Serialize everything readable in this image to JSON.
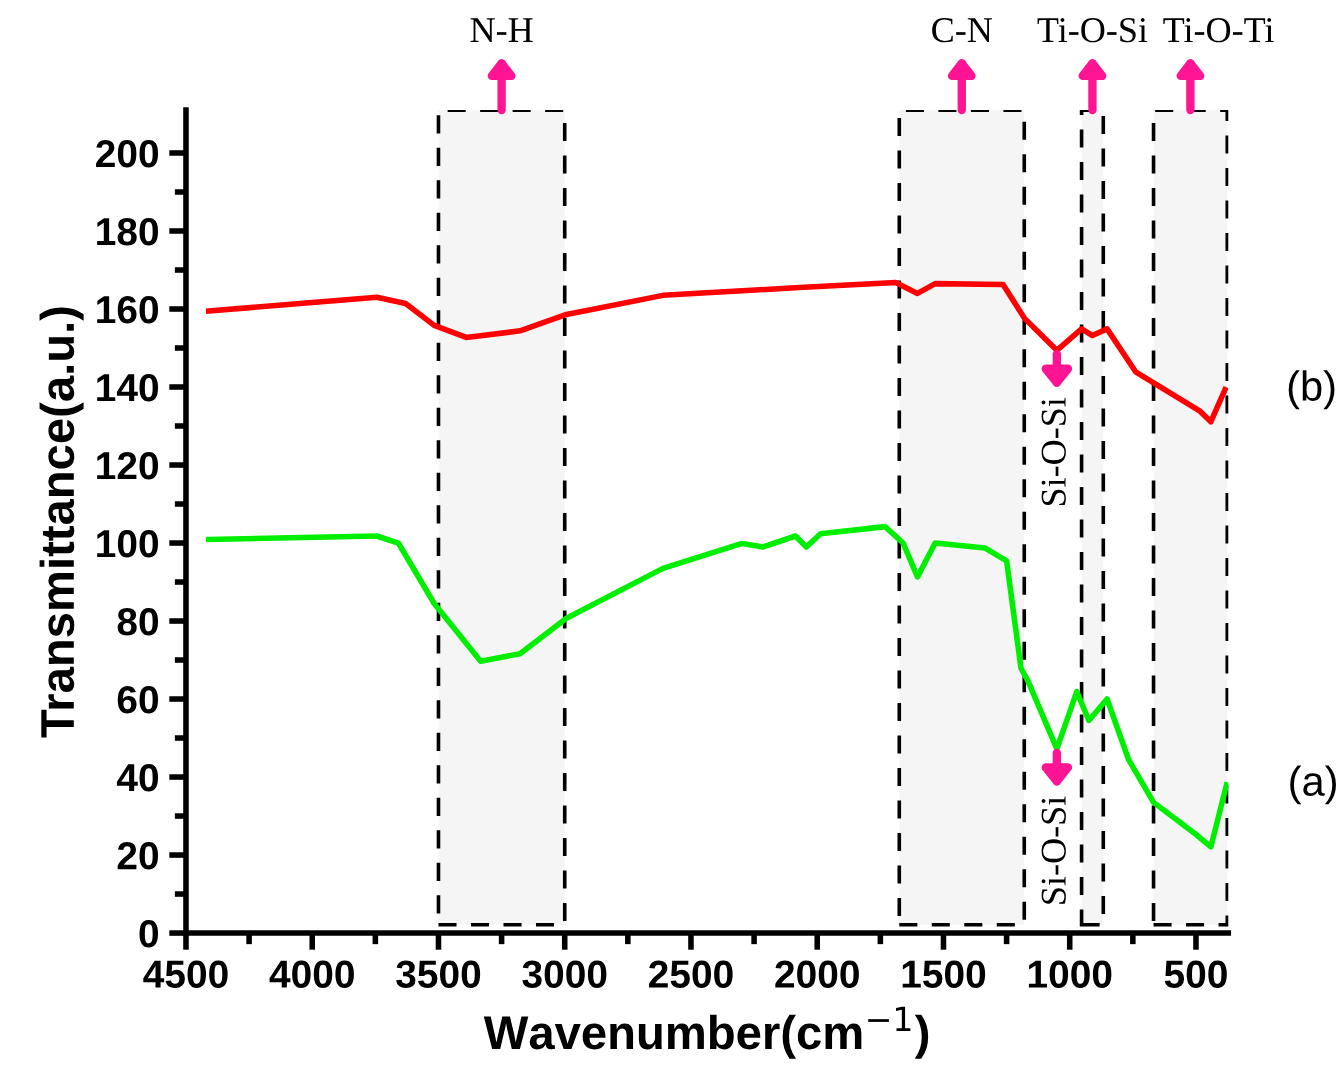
{
  "chart_data": {
    "type": "line",
    "xlabel": "Wavenumber(cm$^{−1}$)",
    "ylabel": "Transmittance(a.u.)",
    "xlim": [
      4500,
      372
    ],
    "ylim": [
      0,
      211
    ],
    "xticks": [
      4500,
      {
        "value": 4250,
        "label": null
      },
      4000,
      {
        "value": 3750,
        "label": null
      },
      3500,
      {
        "value": 3250,
        "label": null
      },
      3000,
      {
        "value": 2750,
        "label": null
      },
      2500,
      {
        "value": 2250,
        "label": null
      },
      2000,
      {
        "value": 1750,
        "label": null
      },
      1500,
      {
        "value": 1250,
        "label": null
      },
      1000,
      {
        "value": 750,
        "label": null
      },
      500
    ],
    "yticks": [
      0,
      {
        "value": 10,
        "label": null
      },
      20,
      {
        "value": 30,
        "label": null
      },
      40,
      {
        "value": 50,
        "label": null
      },
      60,
      {
        "value": 70,
        "label": null
      },
      80,
      {
        "value": 90,
        "label": null
      },
      100,
      {
        "value": 110,
        "label": null
      },
      120,
      {
        "value": 130,
        "label": null
      },
      140,
      {
        "value": 150,
        "label": null
      },
      160,
      {
        "value": 170,
        "label": null
      },
      180,
      {
        "value": 190,
        "label": null
      },
      200
    ],
    "grid": false,
    "legend": false,
    "marker": "none",
    "line_style": "solid",
    "series": [
      {
        "name": "(b)",
        "color": "#ff0000",
        "x": [
          4410,
          3744,
          3630,
          3517,
          3390,
          3177,
          2993,
          2611,
          2071,
          1689,
          1603,
          1533,
          1264,
          1179,
          1051,
          953,
          910,
          852,
          739,
          484,
          441,
          385
        ],
        "values": [
          159.5,
          163,
          161.4,
          155.8,
          152.7,
          154.4,
          158.6,
          163.5,
          165.5,
          166.8,
          164,
          166.5,
          166.3,
          157.6,
          149.4,
          154.9,
          153.2,
          154.9,
          143.9,
          133.8,
          131.1,
          139.3
        ]
      },
      {
        "name": "(a)",
        "color": "#00ee00",
        "x": [
          4410,
          3744,
          3659,
          3517,
          3333,
          3177,
          2993,
          2611,
          2298,
          2214,
          2086,
          2043,
          1987,
          1731,
          1660,
          1603,
          1533,
          1335,
          1250,
          1193,
          1165,
          1051,
          972,
          924,
          852,
          767,
          668,
          498,
          441,
          379
        ],
        "values": [
          100.9,
          101.8,
          100,
          84.5,
          69.7,
          71.6,
          80.7,
          93.5,
          99.9,
          99,
          101.8,
          99,
          102.4,
          104.2,
          100,
          91.3,
          100,
          98.7,
          95.4,
          67.9,
          64.6,
          47.2,
          61.9,
          54.5,
          60,
          44.5,
          33.5,
          25.2,
          22.1,
          38
        ]
      }
    ],
    "bands": [
      {
        "axis": "x",
        "from": 3500,
        "to": 3000,
        "label": "N-H",
        "color": "#000000"
      },
      {
        "axis": "x",
        "from": 1675,
        "to": 1180,
        "label": "C-N",
        "color": "#000000"
      },
      {
        "axis": "x",
        "from": 953,
        "to": 867,
        "label": "Ti-O-Si",
        "color": "#000000"
      },
      {
        "axis": "x",
        "from": 668,
        "to": 376,
        "label": "Ti-O-Ti",
        "color": "#000000"
      }
    ],
    "annotations": [
      {
        "text": "Si-O-Si",
        "x": 1051,
        "y": 149.4
      },
      {
        "text": "Si-O-Si",
        "x": 1051,
        "y": 47.2
      }
    ]
  }
}
